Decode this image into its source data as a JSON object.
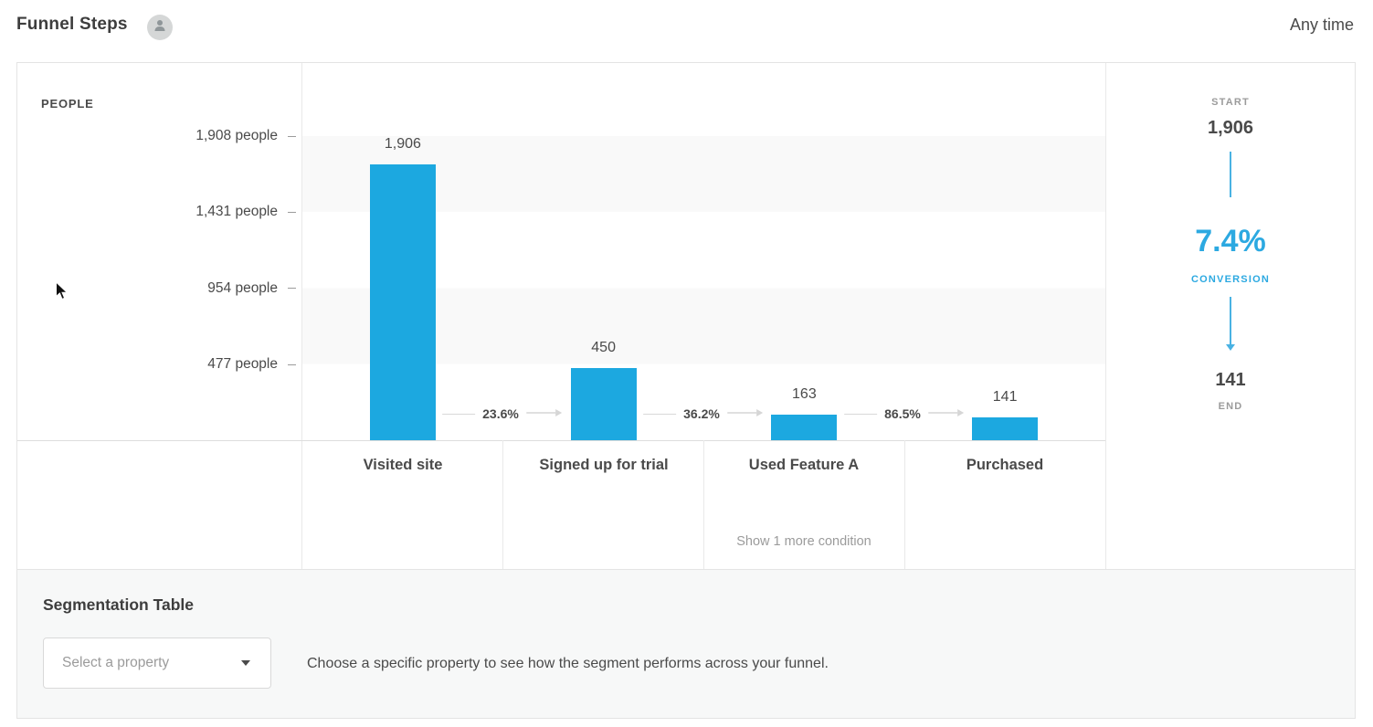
{
  "header": {
    "title": "Funnel Steps",
    "time_range": "Any time"
  },
  "axis": {
    "label": "PEOPLE",
    "ticks": [
      "1,908 people",
      "1,431 people",
      "954 people",
      "477 people"
    ]
  },
  "chart_data": {
    "type": "bar",
    "title": "Funnel Steps",
    "categories": [
      "Visited site",
      "Signed up for trial",
      "Used Feature A",
      "Purchased"
    ],
    "values": [
      1906,
      450,
      163,
      141
    ],
    "value_labels": [
      "1,906",
      "450",
      "163",
      "141"
    ],
    "step_conversions": [
      "23.6%",
      "36.2%",
      "86.5%"
    ],
    "y_ticks": [
      1908,
      1431,
      954,
      477
    ],
    "ylim": [
      0,
      1908
    ],
    "ylabel": "PEOPLE",
    "bar_color": "#1ca8e0",
    "note": "Show 1 more condition",
    "note_step": "Used Feature A",
    "legend": "none",
    "grid": "horizontal-bands"
  },
  "summary": {
    "start_label": "START",
    "start_value": "1,906",
    "conversion_value": "7.4%",
    "conversion_label": "CONVERSION",
    "end_value": "141",
    "end_label": "END",
    "accent_color": "#1ca8e0"
  },
  "segmentation": {
    "title": "Segmentation Table",
    "select_placeholder": "Select a property",
    "description": "Choose a specific property to see how the segment performs across your funnel."
  }
}
